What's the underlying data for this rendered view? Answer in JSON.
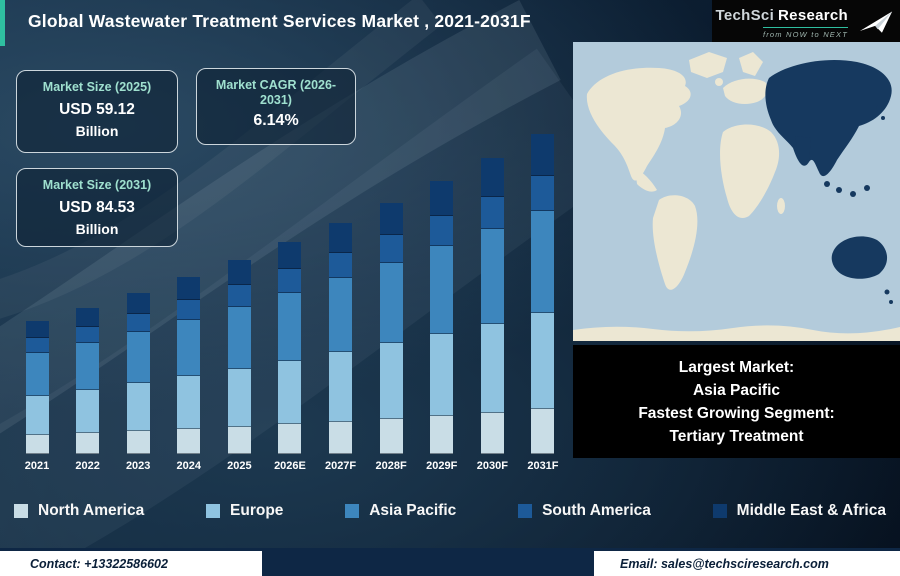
{
  "header": {
    "title": "Global Wastewater Treatment Services Market , 2021-2031F"
  },
  "logo": {
    "name_primary": "TechSci",
    "name_secondary": "Research",
    "tagline": "from NOW to NEXT"
  },
  "stat_boxes": [
    {
      "title": "Market Size (2025)",
      "value": "USD 59.12",
      "unit": "Billion"
    },
    {
      "title": "Market CAGR (2026-2031)",
      "value": "6.14%",
      "unit": ""
    },
    {
      "title": "Market Size (2031)",
      "value": "USD 84.53",
      "unit": "Billion"
    }
  ],
  "map": {
    "highlight_region": "Asia Pacific"
  },
  "info_panel": {
    "lines": [
      "Largest Market:",
      "Asia Pacific",
      "Fastest Growing Segment:",
      "Tertiary Treatment"
    ]
  },
  "footer": {
    "contact": "Contact: +13322586602",
    "email": "Email: sales@techsciresearch.com"
  },
  "chart_data": {
    "type": "bar",
    "stacked": true,
    "title": "Global Wastewater Treatment Services Market, 2021-2031F",
    "unit": "USD Billion",
    "categories": [
      "2021",
      "2022",
      "2023",
      "2024",
      "2025",
      "2026E",
      "2027F",
      "2028F",
      "2029F",
      "2030F",
      "2031F"
    ],
    "series": [
      {
        "name": "North America",
        "color": "#c9dde6",
        "values": [
          6.55,
          6.93,
          7.34,
          7.78,
          8.28,
          8.79,
          9.32,
          9.9,
          10.51,
          11.14,
          11.83
        ]
      },
      {
        "name": "Europe",
        "color": "#8fc3e0",
        "values": [
          14.04,
          14.85,
          15.72,
          16.68,
          17.74,
          18.84,
          19.98,
          21.21,
          22.53,
          23.88,
          25.36
        ]
      },
      {
        "name": "Asia Pacific",
        "color": "#3d86bd",
        "values": [
          14.98,
          15.84,
          16.77,
          17.79,
          18.92,
          20.1,
          21.31,
          22.62,
          24.03,
          25.47,
          27.05
        ]
      },
      {
        "name": "South America",
        "color": "#1d5a99",
        "values": [
          5.15,
          5.45,
          5.76,
          6.12,
          6.5,
          6.91,
          7.33,
          7.78,
          8.26,
          8.76,
          9.3
        ]
      },
      {
        "name": "Middle East & Africa",
        "color": "#0e3a6d",
        "values": [
          6.08,
          6.44,
          6.81,
          7.23,
          7.69,
          8.16,
          8.66,
          9.19,
          9.76,
          10.35,
          10.99
        ]
      }
    ],
    "totals": [
      46.8,
      49.5,
      52.4,
      55.6,
      59.12,
      62.8,
      66.6,
      70.7,
      75.1,
      79.6,
      84.53
    ],
    "annotations": {
      "market_size_2025": "USD 59.12 Billion",
      "market_size_2031": "USD 84.53 Billion",
      "cagr_2026_2031": "6.14%"
    },
    "ylim": [
      0,
      90
    ],
    "legend_position": "bottom",
    "estimation_note": "Only 2025 total, 2031 total and CAGR are labeled on the image; per-year and per-region values estimated from bar proportions."
  }
}
